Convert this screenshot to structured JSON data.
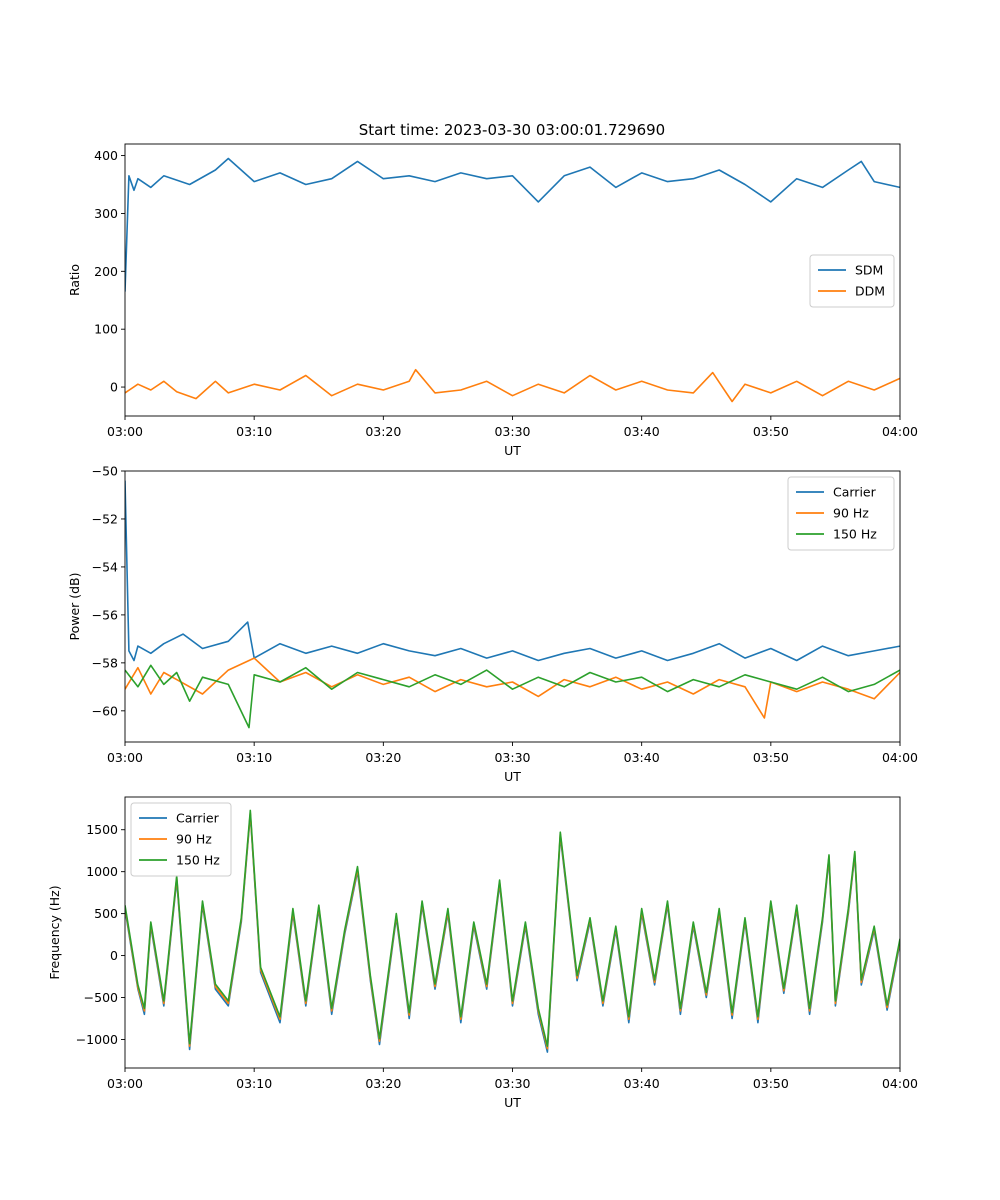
{
  "figure_title": "Start time: 2023-03-30 03:00:01.729690",
  "colors": {
    "blue": "#1f77b4",
    "orange": "#ff7f0e",
    "green": "#2ca02c"
  },
  "chart_data": [
    {
      "type": "line",
      "title": "Start time: 2023-03-30 03:00:01.729690",
      "xlabel": "UT",
      "ylabel": "Ratio",
      "xlim": [
        "03:00",
        "04:00"
      ],
      "xticks": [
        "03:00",
        "03:10",
        "03:20",
        "03:30",
        "03:40",
        "03:50",
        "04:00"
      ],
      "ylim": [
        -50,
        420
      ],
      "yticks": [
        0,
        100,
        200,
        300,
        400
      ],
      "yticklabels": [
        "0",
        "100",
        "200",
        "300",
        "400"
      ],
      "legend": "center-right",
      "series": [
        {
          "name": "SDM",
          "color": "#1f77b4",
          "x": [
            "03:00",
            "03:00.3",
            "03:00.7",
            "03:01",
            "03:02",
            "03:03",
            "03:05",
            "03:07",
            "03:08",
            "03:10",
            "03:12",
            "03:14",
            "03:16",
            "03:18",
            "03:20",
            "03:22",
            "03:24",
            "03:26",
            "03:28",
            "03:30",
            "03:32",
            "03:34",
            "03:36",
            "03:38",
            "03:40",
            "03:42",
            "03:44",
            "03:46",
            "03:48",
            "03:50",
            "03:52",
            "03:54",
            "03:56",
            "03:57",
            "03:58",
            "04:00"
          ],
          "y": [
            165,
            365,
            340,
            360,
            345,
            365,
            350,
            375,
            395,
            355,
            370,
            350,
            360,
            390,
            360,
            365,
            355,
            370,
            360,
            365,
            320,
            365,
            380,
            345,
            370,
            355,
            360,
            375,
            350,
            320,
            360,
            345,
            375,
            390,
            355,
            345
          ]
        },
        {
          "name": "DDM",
          "color": "#ff7f0e",
          "x": [
            "03:00",
            "03:01",
            "03:02",
            "03:03",
            "03:04",
            "03:05.5",
            "03:07",
            "03:08",
            "03:10",
            "03:12",
            "03:14",
            "03:16",
            "03:18",
            "03:20",
            "03:22",
            "03:22.5",
            "03:24",
            "03:26",
            "03:28",
            "03:30",
            "03:32",
            "03:34",
            "03:36",
            "03:38",
            "03:40",
            "03:42",
            "03:44",
            "03:45.5",
            "03:47",
            "03:48",
            "03:50",
            "03:52",
            "03:54",
            "03:56",
            "03:58",
            "04:00"
          ],
          "y": [
            -10,
            5,
            -5,
            10,
            -8,
            -20,
            10,
            -10,
            5,
            -5,
            20,
            -15,
            5,
            -5,
            10,
            30,
            -10,
            -5,
            10,
            -15,
            5,
            -10,
            20,
            -5,
            10,
            -5,
            -10,
            25,
            -25,
            5,
            -10,
            10,
            -15,
            10,
            -5,
            15
          ]
        }
      ]
    },
    {
      "type": "line",
      "xlabel": "UT",
      "ylabel": "Power (dB)",
      "xlim": [
        "03:00",
        "04:00"
      ],
      "xticks": [
        "03:00",
        "03:10",
        "03:20",
        "03:30",
        "03:40",
        "03:50",
        "04:00"
      ],
      "ylim": [
        -61.3,
        -50
      ],
      "yticks": [
        -60,
        -58,
        -56,
        -54,
        -52,
        -50
      ],
      "yticklabels": [
        "−60",
        "−58",
        "−56",
        "−54",
        "−52",
        "−50"
      ],
      "legend": "top-right",
      "series": [
        {
          "name": "Carrier",
          "color": "#1f77b4",
          "x": [
            "03:00",
            "03:00.3",
            "03:00.7",
            "03:01",
            "03:02",
            "03:03",
            "03:04.5",
            "03:06",
            "03:08",
            "03:09.5",
            "03:10",
            "03:12",
            "03:14",
            "03:16",
            "03:18",
            "03:20",
            "03:22",
            "03:24",
            "03:26",
            "03:28",
            "03:30",
            "03:32",
            "03:34",
            "03:36",
            "03:38",
            "03:40",
            "03:42",
            "03:44",
            "03:46",
            "03:48",
            "03:50",
            "03:52",
            "03:54",
            "03:56",
            "03:58",
            "04:00"
          ],
          "y": [
            -50.4,
            -57.5,
            -57.9,
            -57.3,
            -57.6,
            -57.2,
            -56.8,
            -57.4,
            -57.1,
            -56.3,
            -57.8,
            -57.2,
            -57.6,
            -57.3,
            -57.6,
            -57.2,
            -57.5,
            -57.7,
            -57.4,
            -57.8,
            -57.5,
            -57.9,
            -57.6,
            -57.4,
            -57.8,
            -57.5,
            -57.9,
            -57.6,
            -57.2,
            -57.8,
            -57.4,
            -57.9,
            -57.3,
            -57.7,
            -57.5,
            -57.3
          ]
        },
        {
          "name": "90 Hz",
          "color": "#ff7f0e",
          "x": [
            "03:00",
            "03:01",
            "03:02",
            "03:03",
            "03:04",
            "03:06",
            "03:08",
            "03:10",
            "03:12",
            "03:14",
            "03:16",
            "03:18",
            "03:20",
            "03:22",
            "03:24",
            "03:26",
            "03:28",
            "03:30",
            "03:32",
            "03:34",
            "03:36",
            "03:38",
            "03:40",
            "03:42",
            "03:44",
            "03:46",
            "03:48",
            "03:49.5",
            "03:50",
            "03:52",
            "03:54",
            "03:56",
            "03:58",
            "04:00"
          ],
          "y": [
            -59.1,
            -58.2,
            -59.3,
            -58.4,
            -58.7,
            -59.3,
            -58.3,
            -57.8,
            -58.8,
            -58.4,
            -59.0,
            -58.5,
            -58.9,
            -58.6,
            -59.2,
            -58.7,
            -59.0,
            -58.8,
            -59.4,
            -58.7,
            -59.0,
            -58.6,
            -59.1,
            -58.8,
            -59.3,
            -58.7,
            -59.0,
            -60.3,
            -58.8,
            -59.2,
            -58.8,
            -59.1,
            -59.5,
            -58.4
          ]
        },
        {
          "name": "150 Hz",
          "color": "#2ca02c",
          "x": [
            "03:00",
            "03:01",
            "03:02",
            "03:03",
            "03:04",
            "03:05",
            "03:06",
            "03:08",
            "03:09.6",
            "03:10",
            "03:12",
            "03:14",
            "03:16",
            "03:18",
            "03:20",
            "03:22",
            "03:24",
            "03:26",
            "03:28",
            "03:30",
            "03:32",
            "03:34",
            "03:36",
            "03:38",
            "03:40",
            "03:42",
            "03:44",
            "03:46",
            "03:48",
            "03:50",
            "03:52",
            "03:54",
            "03:56",
            "03:58",
            "04:00"
          ],
          "y": [
            -58.3,
            -59.0,
            -58.1,
            -58.9,
            -58.4,
            -59.6,
            -58.6,
            -58.9,
            -60.7,
            -58.5,
            -58.8,
            -58.2,
            -59.1,
            -58.4,
            -58.7,
            -59.0,
            -58.5,
            -58.9,
            -58.3,
            -59.1,
            -58.6,
            -59.0,
            -58.4,
            -58.8,
            -58.6,
            -59.2,
            -58.7,
            -59.0,
            -58.5,
            -58.8,
            -59.1,
            -58.6,
            -59.2,
            -58.9,
            -58.3
          ]
        }
      ]
    },
    {
      "type": "line",
      "xlabel": "UT",
      "ylabel": "Frequency (Hz)",
      "xlim": [
        "03:00",
        "04:00"
      ],
      "xticks": [
        "03:00",
        "03:10",
        "03:20",
        "03:30",
        "03:40",
        "03:50",
        "04:00"
      ],
      "ylim": [
        -1340,
        1890
      ],
      "yticks": [
        -1000,
        -500,
        0,
        500,
        1000,
        1500
      ],
      "yticklabels": [
        "−1000",
        "−500",
        "0",
        "500",
        "1000",
        "1500"
      ],
      "legend": "top-left",
      "series": [
        {
          "name": "Carrier",
          "color": "#1f77b4",
          "x": [
            "03:00",
            "03:01",
            "03:01.5",
            "03:02",
            "03:03",
            "03:04",
            "03:05",
            "03:06",
            "03:07",
            "03:08",
            "03:09",
            "03:09.7",
            "03:10.5",
            "03:12",
            "03:13",
            "03:14",
            "03:15",
            "03:16",
            "03:17",
            "03:18",
            "03:19",
            "03:19.7",
            "03:21",
            "03:22",
            "03:23",
            "03:24",
            "03:25",
            "03:26",
            "03:27",
            "03:28",
            "03:29",
            "03:30",
            "03:31",
            "03:32",
            "03:32.7",
            "03:33.7",
            "03:35",
            "03:36",
            "03:37",
            "03:38",
            "03:39",
            "03:40",
            "03:41",
            "03:42",
            "03:43",
            "03:44",
            "03:45",
            "03:46",
            "03:47",
            "03:48",
            "03:49",
            "03:50",
            "03:51",
            "03:52",
            "03:53",
            "03:54",
            "03:54.5",
            "03:55",
            "03:56",
            "03:56.5",
            "03:57",
            "03:58",
            "03:59",
            "04:00"
          ],
          "y": [
            550,
            -400,
            -700,
            350,
            -600,
            900,
            -1120,
            600,
            -400,
            -600,
            400,
            1680,
            -200,
            -800,
            500,
            -600,
            550,
            -700,
            250,
            1000,
            -300,
            -1060,
            450,
            -750,
            600,
            -400,
            500,
            -800,
            350,
            -400,
            850,
            -600,
            350,
            -700,
            -1150,
            1420,
            -300,
            400,
            -600,
            300,
            -800,
            500,
            -350,
            600,
            -700,
            350,
            -500,
            500,
            -750,
            400,
            -800,
            600,
            -450,
            550,
            -700,
            400,
            1150,
            -600,
            500,
            1200,
            -350,
            300,
            -650,
            150
          ]
        },
        {
          "name": "90 Hz",
          "color": "#ff7f0e",
          "x": [
            "03:00",
            "03:01",
            "03:01.5",
            "03:02",
            "03:03",
            "03:04",
            "03:05",
            "03:06",
            "03:07",
            "03:08",
            "03:09",
            "03:09.7",
            "03:10.5",
            "03:12",
            "03:13",
            "03:14",
            "03:15",
            "03:16",
            "03:17",
            "03:18",
            "03:19",
            "03:19.7",
            "03:21",
            "03:22",
            "03:23",
            "03:24",
            "03:25",
            "03:26",
            "03:27",
            "03:28",
            "03:29",
            "03:30",
            "03:31",
            "03:32",
            "03:32.7",
            "03:33.7",
            "03:35",
            "03:36",
            "03:37",
            "03:38",
            "03:39",
            "03:40",
            "03:41",
            "03:42",
            "03:43",
            "03:44",
            "03:45",
            "03:46",
            "03:47",
            "03:48",
            "03:49",
            "03:50",
            "03:51",
            "03:52",
            "03:53",
            "03:54",
            "03:54.5",
            "03:55",
            "03:56",
            "03:56.5",
            "03:57",
            "03:58",
            "03:59",
            "04:00"
          ],
          "y": [
            580,
            -380,
            -660,
            380,
            -570,
            930,
            -1080,
            630,
            -370,
            -570,
            430,
            1700,
            -170,
            -760,
            530,
            -570,
            580,
            -660,
            280,
            1030,
            -270,
            -1020,
            480,
            -710,
            630,
            -370,
            530,
            -760,
            380,
            -370,
            880,
            -570,
            380,
            -660,
            -1110,
            1450,
            -270,
            430,
            -570,
            330,
            -760,
            530,
            -320,
            630,
            -660,
            380,
            -470,
            530,
            -710,
            430,
            -760,
            630,
            -420,
            580,
            -660,
            430,
            1180,
            -570,
            530,
            1220,
            -320,
            330,
            -620,
            180
          ]
        },
        {
          "name": "150 Hz",
          "color": "#2ca02c",
          "x": [
            "03:00",
            "03:01",
            "03:01.5",
            "03:02",
            "03:03",
            "03:04",
            "03:05",
            "03:06",
            "03:07",
            "03:08",
            "03:09",
            "03:09.7",
            "03:10.5",
            "03:12",
            "03:13",
            "03:14",
            "03:15",
            "03:16",
            "03:17",
            "03:18",
            "03:19",
            "03:19.7",
            "03:21",
            "03:22",
            "03:23",
            "03:24",
            "03:25",
            "03:26",
            "03:27",
            "03:28",
            "03:29",
            "03:30",
            "03:31",
            "03:32",
            "03:32.7",
            "03:33.7",
            "03:35",
            "03:36",
            "03:37",
            "03:38",
            "03:39",
            "03:40",
            "03:41",
            "03:42",
            "03:43",
            "03:44",
            "03:45",
            "03:46",
            "03:47",
            "03:48",
            "03:49",
            "03:50",
            "03:51",
            "03:52",
            "03:53",
            "03:54",
            "03:54.5",
            "03:55",
            "03:56",
            "03:56.5",
            "03:57",
            "03:58",
            "03:59",
            "04:00"
          ],
          "y": [
            600,
            -350,
            -630,
            400,
            -540,
            950,
            -1050,
            650,
            -340,
            -540,
            450,
            1730,
            -140,
            -730,
            560,
            -540,
            600,
            -630,
            300,
            1060,
            -240,
            -990,
            500,
            -680,
            650,
            -340,
            560,
            -730,
            400,
            -340,
            900,
            -540,
            400,
            -630,
            -1080,
            1470,
            -240,
            450,
            -540,
            350,
            -730,
            560,
            -290,
            650,
            -630,
            400,
            -440,
            560,
            -680,
            450,
            -730,
            650,
            -390,
            600,
            -630,
            450,
            1200,
            -540,
            560,
            1240,
            -290,
            350,
            -590,
            200
          ]
        }
      ]
    }
  ]
}
